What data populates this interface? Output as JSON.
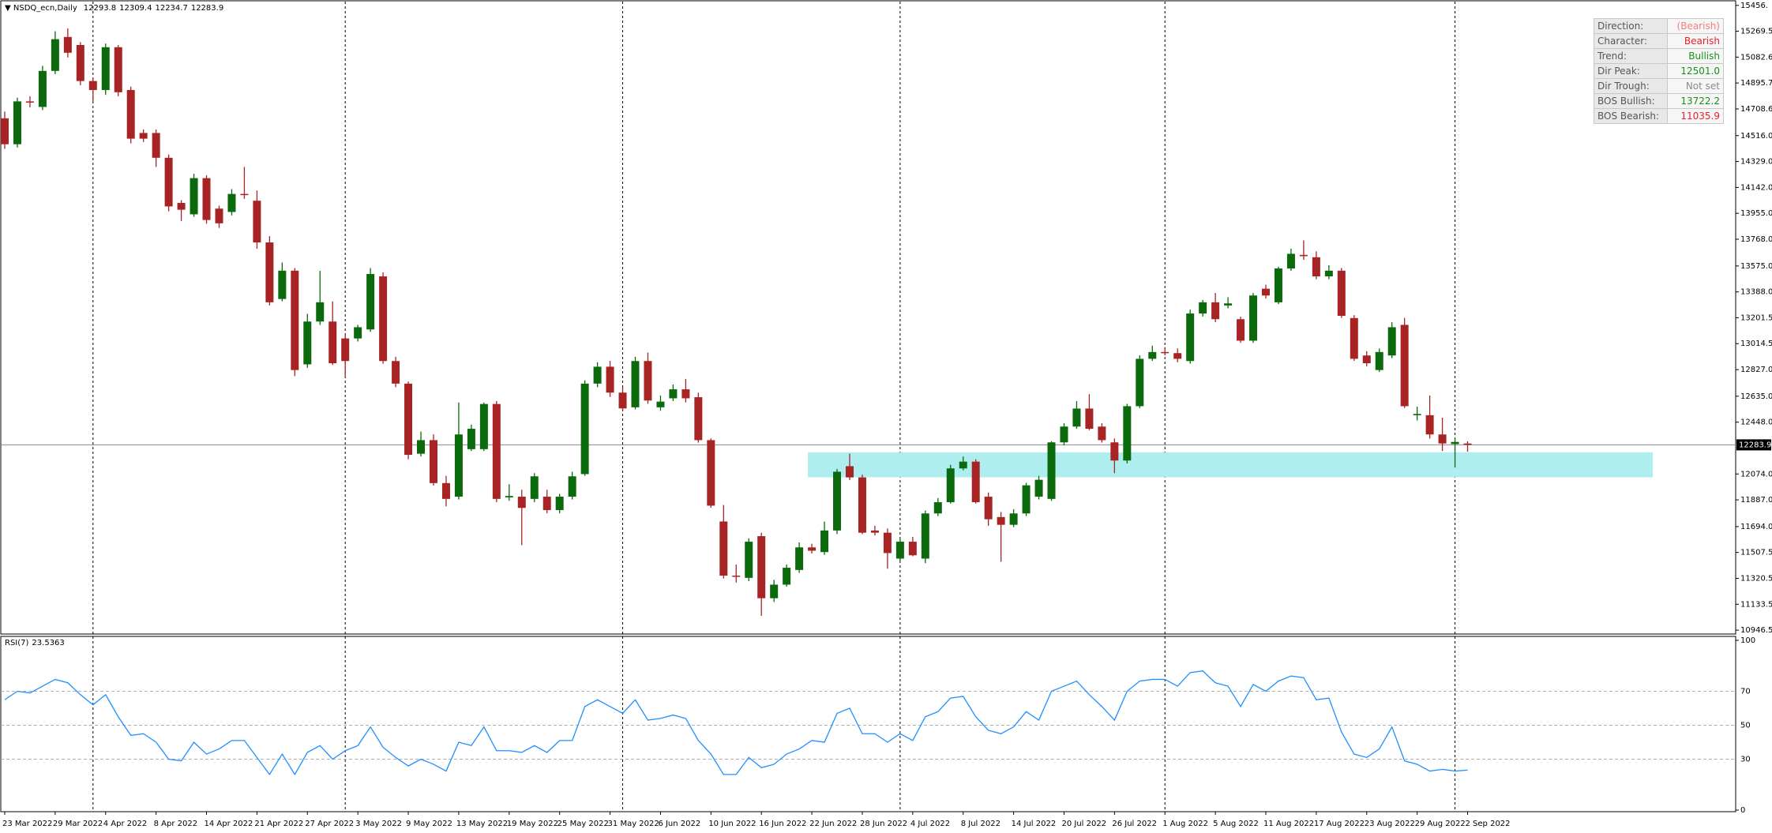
{
  "chart_data": [
    {
      "type": "candlestick",
      "title": "NSDQ_ecn,Daily",
      "categories": [
        "23 Mar 2022",
        null,
        null,
        null,
        "29 Mar 2022",
        null,
        null,
        null,
        "4 Apr 2022",
        null,
        null,
        null,
        "8 Apr 2022",
        null,
        null,
        null,
        "14 Apr 2022",
        null,
        null,
        null,
        "21 Apr 2022",
        null,
        null,
        null,
        "27 Apr 2022",
        null,
        null,
        null,
        "3 May 2022",
        null,
        null,
        null,
        "9 May 2022",
        null,
        null,
        null,
        "13 May 2022",
        null,
        null,
        null,
        "19 May 2022",
        null,
        null,
        null,
        "25 May 2022",
        null,
        null,
        null,
        "31 May 2022",
        null,
        null,
        null,
        "6 Jun 2022",
        null,
        null,
        null,
        "10 Jun 2022",
        null,
        null,
        null,
        "16 Jun 2022",
        null,
        null,
        null,
        "22 Jun 2022",
        null,
        null,
        null,
        "28 Jun 2022",
        null,
        null,
        null,
        "4 Jul 2022",
        null,
        null,
        null,
        "8 Jul 2022",
        null,
        null,
        null,
        "14 Jul 2022",
        null,
        null,
        null,
        "20 Jul 2022",
        null,
        null,
        null,
        "26 Jul 2022",
        null,
        null,
        null,
        "1 Aug 2022",
        null,
        null,
        null,
        "5 Aug 2022",
        null,
        null,
        null,
        "11 Aug 2022",
        null,
        null,
        null,
        "17 Aug 2022",
        null,
        null,
        null,
        "23 Aug 2022",
        null,
        null,
        null,
        "29 Aug 2022",
        null,
        null,
        null,
        "2 Sep 2022"
      ],
      "open": [
        14641,
        14454,
        14763,
        14723,
        14983,
        15228,
        15170,
        14910,
        14845,
        15154,
        14845,
        14535,
        14535,
        14356,
        14030,
        13948,
        14209,
        13989,
        13965,
        14095,
        14046,
        13745,
        13337,
        13541,
        12865,
        13174,
        13174,
        13052,
        13052,
        13117,
        13500,
        12889,
        12726,
        12220,
        12318,
        12008,
        11910,
        12253,
        12253,
        12579,
        11905,
        11910,
        11894,
        11910,
        11813,
        11910,
        12073,
        12726,
        12848,
        12661,
        12555,
        12889,
        12555,
        12620,
        12685,
        12628,
        12318,
        11731,
        11340,
        11324,
        11625,
        11177,
        11275,
        11381,
        11544,
        11510,
        11666,
        12130,
        12049,
        11666,
        11650,
        11463,
        11585,
        11463,
        11789,
        11870,
        12114,
        12163,
        11910,
        11763,
        11707,
        11789,
        11910,
        11894,
        12302,
        12416,
        12546,
        12416,
        12302,
        12171,
        12563,
        12905,
        12954,
        12946,
        12889,
        13232,
        13313,
        13290,
        13191,
        13036,
        13411,
        13313,
        13557,
        13655,
        13638,
        13500,
        13541,
        13199,
        12929,
        12824,
        12929,
        13150,
        12498,
        12498,
        12359,
        12290,
        12293.8
      ],
      "high": [
        14690,
        14790,
        14800,
        15020,
        15269,
        15290,
        15190,
        14930,
        15180,
        15170,
        14870,
        14560,
        14560,
        14380,
        14050,
        14240,
        14230,
        14010,
        14130,
        14290,
        14120,
        13790,
        13600,
        13560,
        13230,
        13540,
        13320,
        13080,
        13150,
        13560,
        13530,
        12920,
        12740,
        12380,
        12360,
        12060,
        12590,
        12430,
        12590,
        12600,
        12000,
        11960,
        12080,
        11960,
        11930,
        12090,
        12750,
        12880,
        12890,
        12700,
        12920,
        12950,
        12640,
        12720,
        12760,
        12660,
        12330,
        11850,
        11420,
        11610,
        11650,
        11310,
        11420,
        11580,
        11570,
        11730,
        12110,
        12220,
        12070,
        11700,
        11680,
        11610,
        11620,
        11810,
        11900,
        12140,
        12200,
        12180,
        11940,
        11800,
        11820,
        12010,
        12060,
        12310,
        12440,
        12600,
        12650,
        12440,
        12330,
        12580,
        12930,
        13000,
        12990,
        12980,
        13260,
        13330,
        13380,
        13350,
        13210,
        13380,
        13440,
        13570,
        13700,
        13760,
        13680,
        13580,
        13560,
        13220,
        12960,
        12980,
        13170,
        13200,
        12560,
        12640,
        12480,
        12330,
        12309.4
      ],
      "low": [
        14420,
        14430,
        14720,
        14700,
        14960,
        15080,
        14880,
        14760,
        14810,
        14800,
        14460,
        14470,
        14290,
        13970,
        13900,
        13930,
        13880,
        13850,
        13940,
        14060,
        13700,
        13290,
        13320,
        12780,
        12840,
        13150,
        12860,
        12780,
        13030,
        13100,
        12870,
        12700,
        12180,
        12200,
        11990,
        11840,
        11890,
        12240,
        12240,
        11870,
        11880,
        11560,
        11870,
        11790,
        11790,
        11890,
        12060,
        12700,
        12630,
        12530,
        12540,
        12580,
        12530,
        12600,
        12590,
        12300,
        11830,
        11320,
        11290,
        11300,
        11050,
        11150,
        11260,
        11360,
        11500,
        11490,
        11640,
        12030,
        11640,
        11630,
        11390,
        11440,
        11480,
        11430,
        11770,
        11860,
        12100,
        11860,
        11700,
        11440,
        11690,
        11770,
        11890,
        11880,
        12280,
        12400,
        12390,
        12300,
        12080,
        12150,
        12550,
        12890,
        12930,
        12880,
        12870,
        13210,
        13170,
        13270,
        13020,
        13020,
        13340,
        13300,
        13540,
        13620,
        13480,
        13480,
        13200,
        12890,
        12850,
        12810,
        12910,
        12550,
        12460,
        12330,
        12240,
        12120,
        12234.7
      ],
      "close": [
        14454,
        14763,
        14755,
        14983,
        15212,
        15114,
        14910,
        14845,
        15154,
        14829,
        14494,
        14494,
        14356,
        14005,
        13981,
        14209,
        13907,
        13883,
        14095,
        14087,
        13745,
        13313,
        13541,
        12824,
        13174,
        13313,
        12873,
        12889,
        13133,
        13517,
        12889,
        12726,
        12212,
        12318,
        12008,
        11894,
        12359,
        12400,
        12579,
        11894,
        11915,
        11829,
        12057,
        11813,
        11910,
        12057,
        12726,
        12848,
        12661,
        12547,
        12889,
        12604,
        12596,
        12685,
        12620,
        12318,
        11845,
        11340,
        11332,
        11585,
        11177,
        11275,
        11397,
        11544,
        11520,
        11666,
        12090,
        12049,
        11650,
        11650,
        11503,
        11585,
        11487,
        11789,
        11870,
        12114,
        12163,
        11870,
        11747,
        11707,
        11789,
        11992,
        12032,
        12302,
        12416,
        12546,
        12400,
        12318,
        12171,
        12563,
        12905,
        12954,
        12946,
        12905,
        13232,
        13313,
        13191,
        13305,
        13036,
        13362,
        13362,
        13557,
        13663,
        13646,
        13500,
        13541,
        13215,
        12905,
        12873,
        12954,
        13133,
        12563,
        12507,
        12359,
        12294,
        12305,
        12283.9
      ],
      "up_color": "#0b6a0b",
      "down_color": "#a82424",
      "zone": [
        12050,
        12230
      ],
      "zone_color": "#aeeeee",
      "ylim": [
        10930,
        15472
      ],
      "yticks": [
        {
          "value": 15456,
          "label": "15456."
        },
        15269.5,
        15082.6,
        14895.7,
        14708.6,
        {
          "value": 14516,
          "label": "14516.0"
        },
        {
          "value": 14329,
          "label": "14329.0"
        },
        {
          "value": 14142,
          "label": "14142.0"
        },
        {
          "value": 13955,
          "label": "13955.0"
        },
        {
          "value": 13768,
          "label": "13768.0"
        },
        {
          "value": 13575,
          "label": "13575.0"
        },
        {
          "value": 13388,
          "label": "13388.0"
        },
        13201.5,
        13014.5,
        {
          "value": 12827,
          "label": "12827.0"
        },
        {
          "value": 12635,
          "label": "12635.0"
        },
        {
          "value": 12448,
          "label": "12448.0"
        },
        {
          "value": 12074,
          "label": "12074.0"
        },
        {
          "value": 11887,
          "label": "11887.0"
        },
        {
          "value": 11694,
          "label": "11694.0"
        },
        11507.5,
        11320.5,
        11133.5,
        10946.5
      ]
    },
    {
      "type": "line",
      "title": "RSI(7)",
      "color": "#1e90ff",
      "ylim": [
        0,
        100
      ],
      "yticks": [
        0,
        30,
        50,
        70,
        100
      ],
      "grid": true,
      "values": [
        65,
        70,
        69,
        73,
        77,
        75,
        68,
        62,
        68,
        55,
        44,
        45,
        40,
        30,
        29,
        40,
        33,
        36,
        41,
        41,
        31,
        21,
        33,
        21,
        34,
        38,
        30,
        35,
        38,
        49,
        37,
        31,
        26,
        30,
        27,
        23,
        40,
        38,
        49,
        35,
        35,
        34,
        38,
        34,
        41,
        41,
        61,
        65,
        61,
        57,
        65,
        53,
        54,
        56,
        54,
        41,
        33,
        21,
        21,
        31,
        25,
        27,
        33,
        36,
        41,
        40,
        57,
        60,
        45,
        45,
        40,
        45,
        41,
        55,
        58,
        66,
        67,
        55,
        47,
        45,
        49,
        58,
        53,
        70,
        73,
        76,
        68,
        61,
        53,
        70,
        76,
        77,
        77,
        73,
        81,
        82,
        75,
        73,
        61,
        74,
        70,
        76,
        79,
        78,
        65,
        66,
        46,
        33,
        31,
        36,
        49,
        29,
        27,
        23,
        24,
        23,
        23.5363
      ]
    }
  ],
  "info_panel": {
    "rows": [
      {
        "label": "Direction:",
        "value": "(Bearish)",
        "color": "#f08080"
      },
      {
        "label": "Character:",
        "value": "Bearish",
        "color": "#e8202a"
      },
      {
        "label": "Trend:",
        "value": "Bullish",
        "color": "#1a8f1a"
      },
      {
        "label": "Dir Peak:",
        "value": "12501.0",
        "color": "#1a8f1a"
      },
      {
        "label": "Dir Trough:",
        "value": "Not set",
        "color": "#8a8a8a"
      },
      {
        "label": "BOS Bullish:",
        "value": "13722.2",
        "color": "#1a8f1a"
      },
      {
        "label": "BOS Bearish:",
        "value": "11035.9",
        "color": "#e8202a"
      }
    ]
  }
}
